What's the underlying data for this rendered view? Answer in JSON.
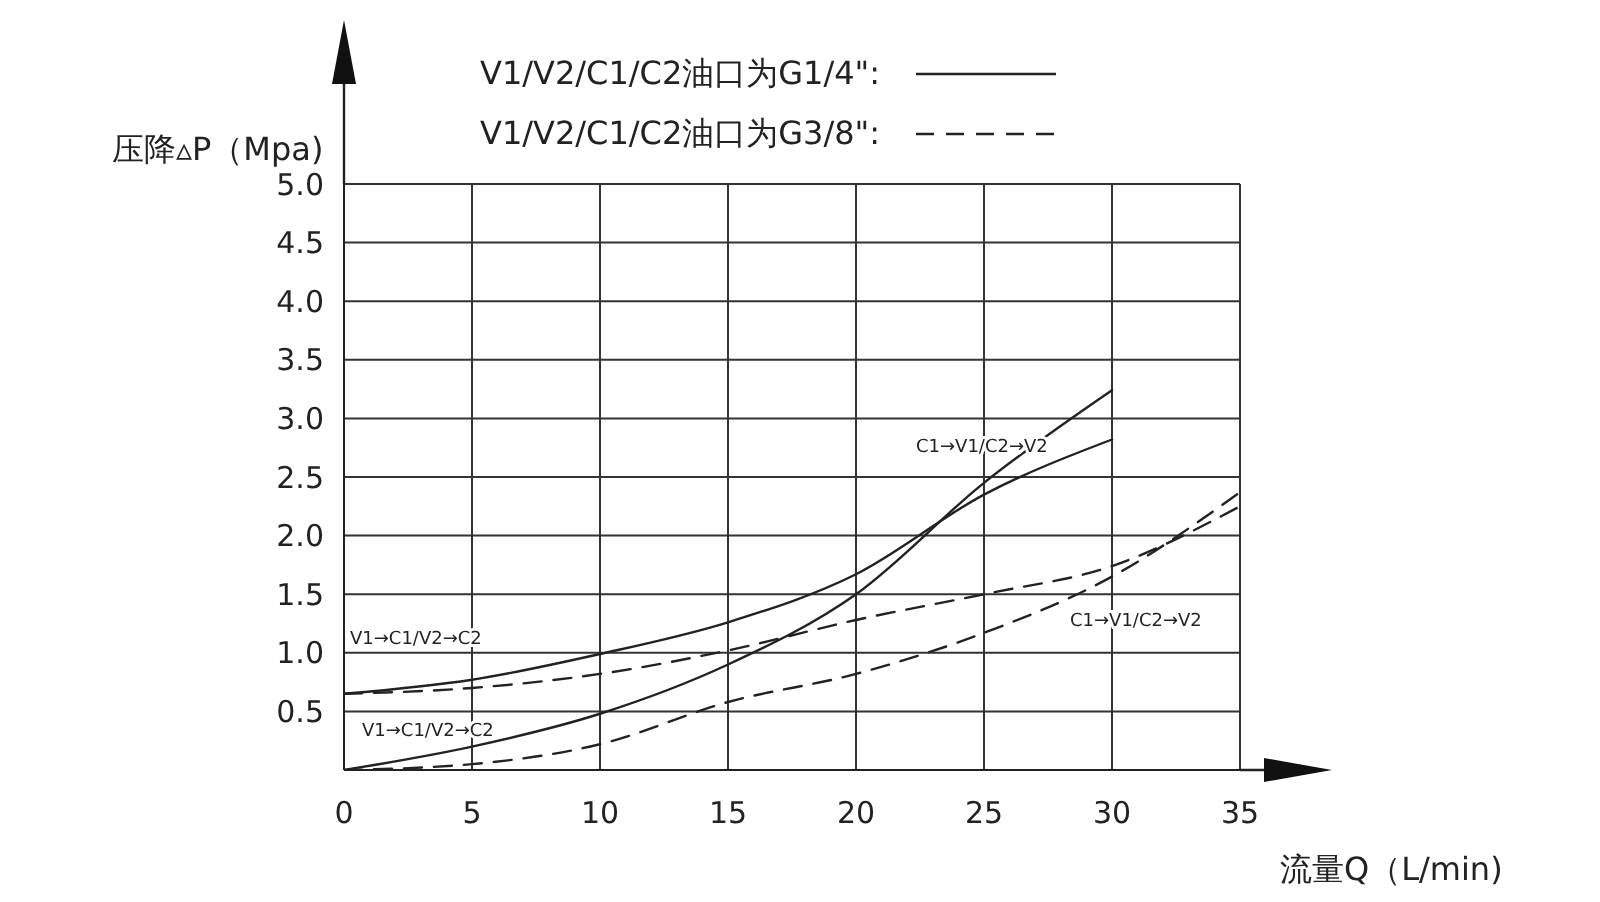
{
  "chart_data": {
    "type": "line",
    "xlabel": "流量Q（L/min)",
    "ylabel": "压降▵P（Mpa)",
    "x": [
      0,
      5,
      10,
      15,
      20,
      25,
      30,
      35
    ],
    "series": [
      {
        "name": "V1/V2/C1/C2油口为G1/4\":",
        "color": "#222222",
        "line_style": "solid",
        "values": [
          0.65,
          0.77,
          0.99,
          1.26,
          1.67,
          2.35,
          2.82,
          null
        ]
      },
      {
        "color": "#222222",
        "line_style": "solid",
        "values": [
          0,
          0.2,
          0.48,
          0.9,
          1.5,
          2.45,
          3.24,
          null
        ]
      },
      {
        "name": "V1/V2/C1/C2油口为G3/8\":",
        "color": "#222222",
        "line_style": "dashed",
        "values": [
          0.65,
          0.7,
          0.82,
          1.02,
          1.28,
          1.5,
          1.74,
          2.25
        ]
      },
      {
        "color": "#222222",
        "line_style": "dashed",
        "values": [
          0,
          0.05,
          0.22,
          0.58,
          0.82,
          1.17,
          1.65,
          2.37
        ]
      }
    ],
    "xlim": [
      0,
      35
    ],
    "xticks": [
      0,
      5,
      10,
      15,
      20,
      25,
      30,
      35
    ],
    "ylim": [
      0,
      5
    ],
    "yticks": [
      {
        "value": 0,
        "label": null
      },
      {
        "value": 0.5,
        "label": "0.5"
      },
      {
        "value": 1,
        "label": "1.0"
      },
      {
        "value": 1.5,
        "label": "1.5"
      },
      {
        "value": 2,
        "label": "2.0"
      },
      {
        "value": 2.5,
        "label": "2.5"
      },
      {
        "value": 3,
        "label": "3.0"
      },
      {
        "value": 3.5,
        "label": "3.5"
      },
      {
        "value": 4,
        "label": "4.0"
      },
      {
        "value": 4.5,
        "label": "4.5"
      },
      {
        "value": 5,
        "label": "5.0"
      }
    ],
    "grid": true,
    "legend": "top right",
    "marker": "none",
    "annotations": [
      "V1→C1/V2→C2",
      "V1→C1/V2→C2",
      "C1→V1/C2→V2",
      "C1→V1/C2→V2"
    ]
  }
}
